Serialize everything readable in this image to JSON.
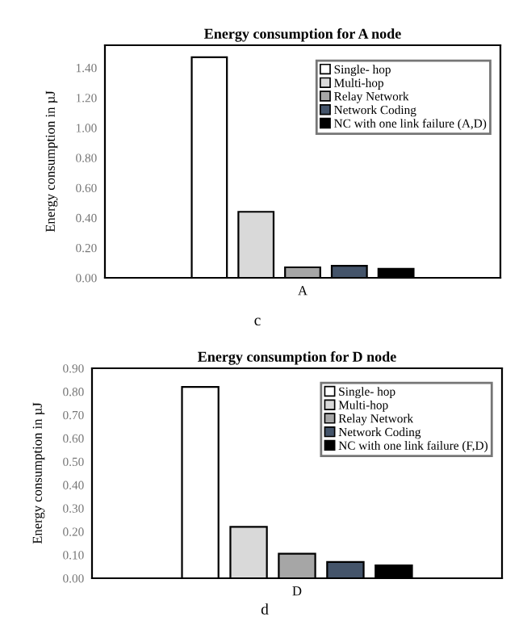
{
  "chart_data": [
    {
      "type": "bar",
      "title": "Energy consumption for A node",
      "ylabel": "Energy consumption in µJ",
      "categories": [
        "A"
      ],
      "series": [
        {
          "name": "Single- hop",
          "color": "#ffffff",
          "values": [
            1.47
          ]
        },
        {
          "name": "Multi-hop",
          "color": "#d9d9d9",
          "values": [
            0.44
          ]
        },
        {
          "name": "Relay Network",
          "color": "#a6a6a6",
          "values": [
            0.07
          ]
        },
        {
          "name": "Network Coding",
          "color": "#44546a",
          "values": [
            0.08
          ]
        },
        {
          "name": "NC with one link failure (A,D)",
          "color": "#000000",
          "values": [
            0.06
          ]
        }
      ],
      "ylim": [
        0,
        1.55
      ],
      "yticks": [
        {
          "value": 0,
          "label": "0.00"
        },
        {
          "value": 0.2,
          "label": "0.20"
        },
        {
          "value": 0.4,
          "label": "0.40"
        },
        {
          "value": 0.6,
          "label": "0.60"
        },
        {
          "value": 0.8,
          "label": "0.80"
        },
        {
          "value": 1.0,
          "label": "1.00"
        },
        {
          "value": 1.2,
          "label": "1.20"
        },
        {
          "value": 1.4,
          "label": "1.40"
        }
      ],
      "grid": false,
      "legend": "top right",
      "annotations": [
        "c"
      ]
    },
    {
      "type": "bar",
      "title": "Energy consumption for D node",
      "ylabel": "Energy consumption in µJ",
      "categories": [
        "D"
      ],
      "series": [
        {
          "name": "Single- hop",
          "color": "#ffffff",
          "values": [
            0.82
          ]
        },
        {
          "name": "Multi-hop",
          "color": "#d9d9d9",
          "values": [
            0.22
          ]
        },
        {
          "name": "Relay Network",
          "color": "#a6a6a6",
          "values": [
            0.105
          ]
        },
        {
          "name": "Network Coding",
          "color": "#44546a",
          "values": [
            0.07
          ]
        },
        {
          "name": "NC with one link failure (F,D)",
          "color": "#000000",
          "values": [
            0.055
          ]
        }
      ],
      "ylim": [
        0,
        0.9
      ],
      "yticks": [
        {
          "value": 0,
          "label": "0.00"
        },
        {
          "value": 0.1,
          "label": "0.10"
        },
        {
          "value": 0.2,
          "label": "0.20"
        },
        {
          "value": 0.3,
          "label": "0.30"
        },
        {
          "value": 0.4,
          "label": "0.40"
        },
        {
          "value": 0.5,
          "label": "0.50"
        },
        {
          "value": 0.6,
          "label": "0.60"
        },
        {
          "value": 0.7,
          "label": "0.70"
        },
        {
          "value": 0.8,
          "label": "0.80"
        },
        {
          "value": 0.9,
          "label": "0.90"
        }
      ],
      "grid": false,
      "legend": "top right",
      "annotations": [
        "d"
      ]
    }
  ]
}
